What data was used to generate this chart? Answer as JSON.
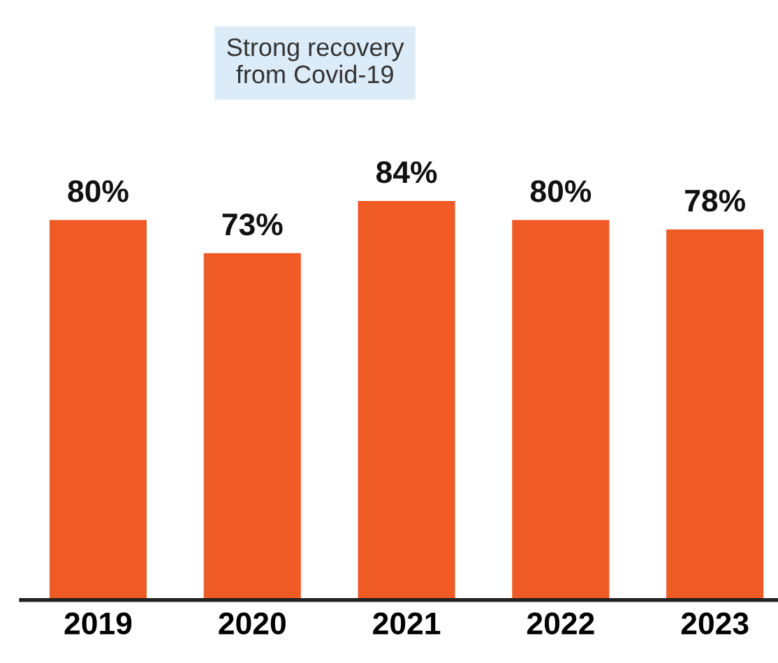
{
  "chart_data": {
    "type": "bar",
    "categories": [
      "2019",
      "2020",
      "2021",
      "2022",
      "2023"
    ],
    "values": [
      80,
      73,
      84,
      80,
      78
    ],
    "value_labels": [
      "80%",
      "73%",
      "84%",
      "80%",
      "78%"
    ],
    "color": "#f05a24",
    "annotations": [
      "Strong recovery\nfrom Covid-19"
    ],
    "grid": false,
    "legend": false
  }
}
